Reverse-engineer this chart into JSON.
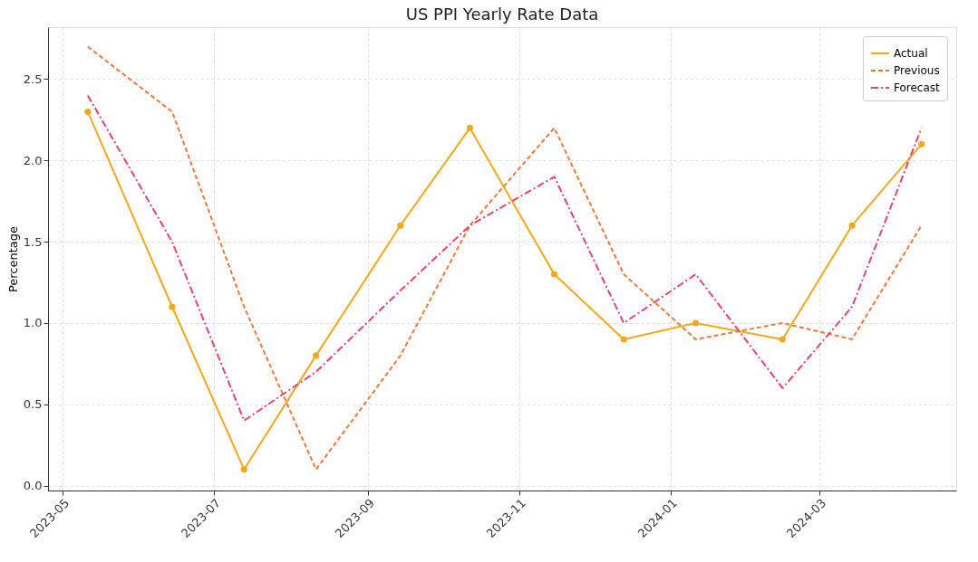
{
  "chart_data": {
    "type": "line",
    "title": "US PPI Yearly Rate Data",
    "ylabel": "Percentage",
    "x": [
      "2023-05-11",
      "2023-06-14",
      "2023-07-13",
      "2023-08-11",
      "2023-09-14",
      "2023-10-12",
      "2023-11-15",
      "2023-12-13",
      "2024-01-11",
      "2024-02-15",
      "2024-03-14",
      "2024-04-11"
    ],
    "series": [
      {
        "name": "Actual",
        "color": "#f5a81c",
        "marker": "circle",
        "line_style": "solid",
        "values": [
          2.3,
          1.1,
          0.1,
          0.8,
          1.6,
          2.2,
          1.3,
          0.9,
          1.0,
          0.9,
          1.6,
          2.1
        ]
      },
      {
        "name": "Previous",
        "color": "#ee7a3a",
        "marker": "none",
        "line_style": "dashed",
        "values": [
          2.7,
          2.3,
          1.1,
          0.1,
          0.8,
          1.6,
          2.2,
          1.3,
          0.9,
          1.0,
          0.9,
          1.6
        ]
      },
      {
        "name": "Forecast",
        "color": "#e8436c",
        "marker": "none",
        "line_style": "dashdot",
        "values": [
          2.4,
          1.5,
          0.4,
          0.7,
          1.2,
          1.6,
          1.9,
          1.0,
          1.3,
          0.6,
          1.1,
          2.2
        ]
      }
    ],
    "xlim": [
      "2023-04-25",
      "2024-04-25"
    ],
    "xticks": [
      "2023-05",
      "2023-07",
      "2023-09",
      "2023-11",
      "2024-01",
      "2024-03"
    ],
    "ylim": [
      -0.03,
      2.82
    ],
    "yticks": [
      {
        "value": 0,
        "label": "0.0"
      },
      0.5,
      {
        "value": 1,
        "label": "1.0"
      },
      1.5,
      {
        "value": 2,
        "label": "2.0"
      },
      2.5
    ],
    "grid": true,
    "legend": "top right"
  }
}
